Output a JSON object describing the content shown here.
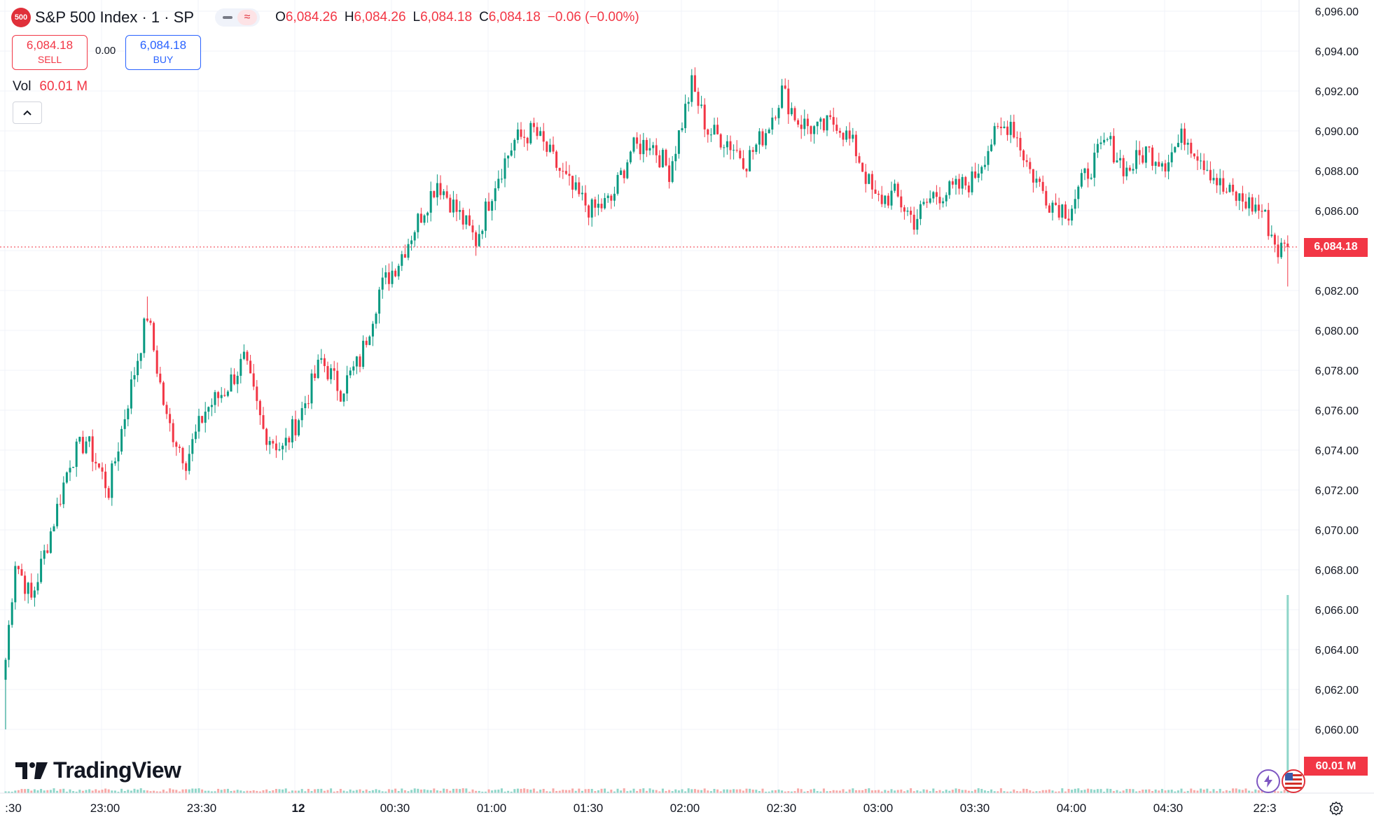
{
  "symbol": {
    "badge": "500",
    "title": "S&P 500 Index · 1 · SP"
  },
  "legend": {
    "o_label": "O",
    "o_value": "6,084.26",
    "h_label": "H",
    "h_value": "6,084.26",
    "l_label": "L",
    "l_value": "6,084.18",
    "c_label": "C",
    "c_value": "6,084.18",
    "change": "−0.06 (−0.00%)"
  },
  "trade": {
    "sell_price": "6,084.18",
    "sell_label": "SELL",
    "spread": "0.00",
    "buy_price": "6,084.18",
    "buy_label": "BUY"
  },
  "volume": {
    "label": "Vol",
    "value": "60.01 M"
  },
  "brand": "TradingView",
  "tags": {
    "price": "6,084.18",
    "volume": "60.01 M"
  },
  "colors": {
    "up": "#089981",
    "down": "#f23645",
    "grid": "#f0f3fa",
    "text": "#131722"
  },
  "icons": [
    "chevron-up-icon",
    "lightning-icon",
    "us-flag-icon",
    "settings-icon",
    "tradingview-logo-icon"
  ],
  "chart_data": {
    "type": "candlestick",
    "title": "S&P 500 Index · 1 · SP",
    "interval": "1 minute",
    "xlabel": "",
    "ylabel": "",
    "ylim": [
      6058.0,
      6096.0
    ],
    "y_ticks": [
      "6,096.00",
      "6,094.00",
      "6,092.00",
      "6,090.00",
      "6,088.00",
      "6,086.00",
      "6,084.00",
      "6,082.00",
      "6,080.00",
      "6,078.00",
      "6,076.00",
      "6,074.00",
      "6,072.00",
      "6,070.00",
      "6,068.00",
      "6,066.00",
      "6,064.00",
      "6,062.00",
      "6,060.00"
    ],
    "x_ticks": [
      ":30",
      "23:00",
      "23:30",
      "12",
      "00:30",
      "01:00",
      "01:30",
      "02:00",
      "02:30",
      "03:00",
      "03:30",
      "04:00",
      "04:30",
      "22:3"
    ],
    "last_price": 6084.18,
    "last_volume": "60.01 M",
    "grid": true,
    "price_path": [
      {
        "t": "22:30",
        "close": 6063.5,
        "low": 6060.0
      },
      {
        "t": "22:33",
        "close": 6068.5
      },
      {
        "t": "22:38",
        "close": 6066.5
      },
      {
        "t": "22:45",
        "close": 6070.5
      },
      {
        "t": "22:50",
        "close": 6073.5
      },
      {
        "t": "22:55",
        "close": 6074.5
      },
      {
        "t": "23:02",
        "close": 6072.0,
        "low": 6071.5
      },
      {
        "t": "23:08",
        "close": 6076.5
      },
      {
        "t": "23:14",
        "close": 6080.8,
        "high": 6081.7
      },
      {
        "t": "23:20",
        "close": 6075.5
      },
      {
        "t": "23:26",
        "close": 6073.5,
        "low": 6072.5
      },
      {
        "t": "23:32",
        "close": 6076.0
      },
      {
        "t": "23:38",
        "close": 6077.0
      },
      {
        "t": "23:44",
        "close": 6078.5,
        "high": 6079.3
      },
      {
        "t": "23:50",
        "close": 6075.0
      },
      {
        "t": "23:56",
        "close": 6074.0,
        "low": 6073.5
      },
      {
        "t": "00:02",
        "close": 6076.0
      },
      {
        "t": "00:08",
        "close": 6078.5
      },
      {
        "t": "00:14",
        "close": 6077.0
      },
      {
        "t": "00:20",
        "close": 6078.5
      },
      {
        "t": "00:26",
        "close": 6082.0
      },
      {
        "t": "00:32",
        "close": 6083.5
      },
      {
        "t": "00:38",
        "close": 6085.5
      },
      {
        "t": "00:44",
        "close": 6087.5
      },
      {
        "t": "00:50",
        "close": 6086.0
      },
      {
        "t": "00:56",
        "close": 6084.5,
        "low": 6084.0
      },
      {
        "t": "01:02",
        "close": 6087.5
      },
      {
        "t": "01:08",
        "close": 6089.5
      },
      {
        "t": "01:14",
        "close": 6090.0,
        "high": 6090.4
      },
      {
        "t": "01:20",
        "close": 6088.5
      },
      {
        "t": "01:26",
        "close": 6087.0
      },
      {
        "t": "01:32",
        "close": 6086.0,
        "low": 6085.2
      },
      {
        "t": "01:38",
        "close": 6086.5
      },
      {
        "t": "01:44",
        "close": 6089.0
      },
      {
        "t": "01:50",
        "close": 6089.5
      },
      {
        "t": "01:56",
        "close": 6088.0,
        "low": 6087.5
      },
      {
        "t": "02:03",
        "close": 6092.3,
        "high": 6092.5
      },
      {
        "t": "02:08",
        "close": 6090.0
      },
      {
        "t": "02:14",
        "close": 6089.5
      },
      {
        "t": "02:20",
        "close": 6088.5
      },
      {
        "t": "02:26",
        "close": 6090.0
      },
      {
        "t": "02:31",
        "close": 6092.0,
        "high": 6092.5
      },
      {
        "t": "02:36",
        "close": 6090.5
      },
      {
        "t": "02:42",
        "close": 6090.0
      },
      {
        "t": "02:48",
        "close": 6090.5
      },
      {
        "t": "02:54",
        "close": 6089.0
      },
      {
        "t": "03:00",
        "close": 6086.5
      },
      {
        "t": "03:06",
        "close": 6086.8
      },
      {
        "t": "03:12",
        "close": 6085.5,
        "low": 6084.8
      },
      {
        "t": "03:18",
        "close": 6086.8
      },
      {
        "t": "03:24",
        "close": 6087.0
      },
      {
        "t": "03:30",
        "close": 6087.5
      },
      {
        "t": "03:36",
        "close": 6089.5
      },
      {
        "t": "03:42",
        "close": 6090.5,
        "high": 6090.8
      },
      {
        "t": "03:48",
        "close": 6088.0
      },
      {
        "t": "03:54",
        "close": 6086.5
      },
      {
        "t": "04:00",
        "close": 6086.0,
        "low": 6085.8
      },
      {
        "t": "04:06",
        "close": 6088.0
      },
      {
        "t": "04:12",
        "close": 6089.5
      },
      {
        "t": "04:18",
        "close": 6088.0
      },
      {
        "t": "04:24",
        "close": 6089.0
      },
      {
        "t": "04:30",
        "close": 6088.5
      },
      {
        "t": "04:36",
        "close": 6089.8,
        "high": 6090.0
      },
      {
        "t": "04:42",
        "close": 6088.5
      },
      {
        "t": "04:48",
        "close": 6087.0
      },
      {
        "t": "04:54",
        "close": 6086.5
      },
      {
        "t": "05:00",
        "close": 6086.0
      },
      {
        "t": "05:05",
        "close": 6084.0,
        "low": 6083.5
      },
      {
        "t": "05:08",
        "close": 6084.18,
        "low": 6082.2
      }
    ]
  }
}
